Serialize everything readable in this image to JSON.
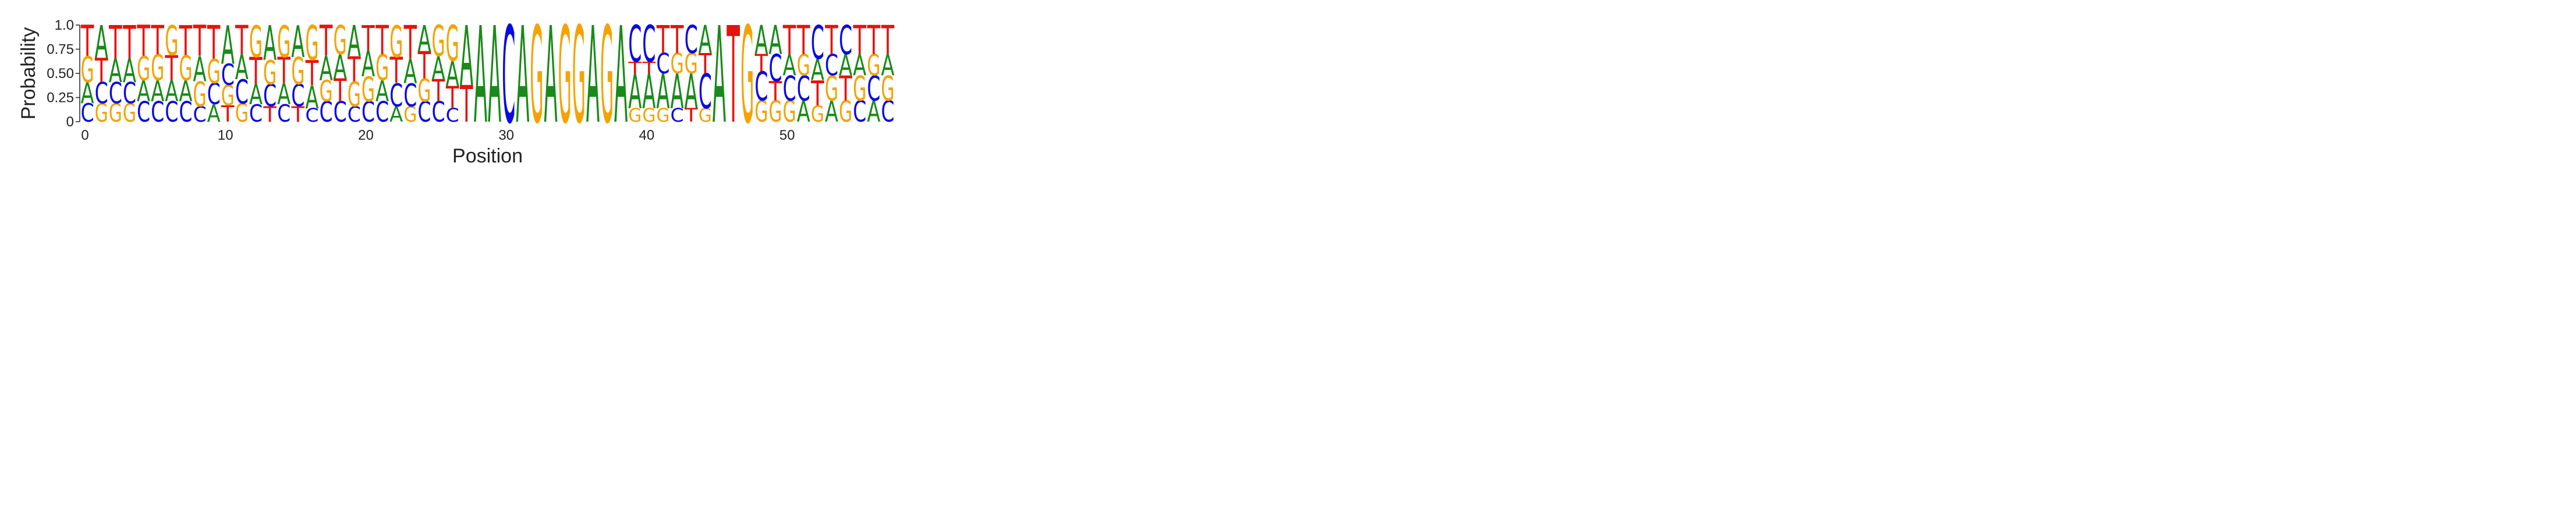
{
  "chart_data": {
    "type": "sequence-logo",
    "xlabel": "Position",
    "ylabel": "Probability",
    "ylim": [
      0,
      1
    ],
    "xlim": [
      0,
      58
    ],
    "yticks": [
      0,
      0.25,
      0.5,
      0.75,
      1
    ],
    "ytick_labels": [
      "0",
      "0.25",
      "0.50",
      "0.75",
      "1.0"
    ],
    "xticks": [
      0,
      10,
      20,
      30,
      40,
      50
    ],
    "xtick_labels": [
      "0",
      "10",
      "20",
      "30",
      "40",
      "50"
    ],
    "grid": false,
    "colors": {
      "A": "#1a8a1a",
      "C": "#0a0ae6",
      "G": "#f5a300",
      "T": "#e8120c"
    },
    "positions": [
      {
        "pos": 0,
        "C": 0.19,
        "A": 0.22,
        "G": 0.27,
        "T": 0.32
      },
      {
        "pos": 1,
        "G": 0.19,
        "C": 0.22,
        "T": 0.25,
        "A": 0.34
      },
      {
        "pos": 2,
        "G": 0.19,
        "C": 0.22,
        "A": 0.25,
        "T": 0.34
      },
      {
        "pos": 3,
        "G": 0.19,
        "C": 0.22,
        "A": 0.25,
        "T": 0.34
      },
      {
        "pos": 4,
        "C": 0.21,
        "A": 0.22,
        "G": 0.25,
        "T": 0.32
      },
      {
        "pos": 5,
        "C": 0.21,
        "A": 0.22,
        "G": 0.27,
        "T": 0.3
      },
      {
        "pos": 6,
        "C": 0.21,
        "A": 0.22,
        "T": 0.26,
        "G": 0.31
      },
      {
        "pos": 7,
        "C": 0.21,
        "A": 0.22,
        "G": 0.26,
        "T": 0.31
      },
      {
        "pos": 8,
        "C": 0.16,
        "G": 0.26,
        "A": 0.26,
        "T": 0.32
      },
      {
        "pos": 9,
        "A": 0.18,
        "C": 0.22,
        "G": 0.25,
        "T": 0.35
      },
      {
        "pos": 10,
        "T": 0.17,
        "G": 0.21,
        "C": 0.22,
        "A": 0.4
      },
      {
        "pos": 11,
        "G": 0.19,
        "C": 0.25,
        "A": 0.26,
        "T": 0.3
      },
      {
        "pos": 12,
        "C": 0.18,
        "A": 0.21,
        "T": 0.28,
        "G": 0.33
      },
      {
        "pos": 13,
        "T": 0.16,
        "C": 0.23,
        "G": 0.25,
        "A": 0.36
      },
      {
        "pos": 14,
        "C": 0.18,
        "A": 0.22,
        "T": 0.27,
        "G": 0.33
      },
      {
        "pos": 15,
        "T": 0.16,
        "C": 0.23,
        "G": 0.28,
        "A": 0.33
      },
      {
        "pos": 16,
        "C": 0.14,
        "A": 0.24,
        "T": 0.26,
        "G": 0.36
      },
      {
        "pos": 17,
        "C": 0.21,
        "G": 0.22,
        "A": 0.25,
        "T": 0.32
      },
      {
        "pos": 18,
        "C": 0.21,
        "T": 0.24,
        "A": 0.25,
        "G": 0.3
      },
      {
        "pos": 19,
        "C": 0.16,
        "G": 0.26,
        "T": 0.26,
        "A": 0.32
      },
      {
        "pos": 20,
        "C": 0.21,
        "G": 0.26,
        "A": 0.27,
        "T": 0.26
      },
      {
        "pos": 21,
        "C": 0.21,
        "A": 0.22,
        "G": 0.27,
        "T": 0.3
      },
      {
        "pos": 22,
        "A": 0.16,
        "C": 0.24,
        "T": 0.27,
        "G": 0.33
      },
      {
        "pos": 23,
        "G": 0.16,
        "C": 0.24,
        "A": 0.25,
        "T": 0.35
      },
      {
        "pos": 24,
        "C": 0.21,
        "G": 0.24,
        "T": 0.28,
        "A": 0.27
      },
      {
        "pos": 25,
        "C": 0.21,
        "T": 0.23,
        "A": 0.24,
        "G": 0.32
      },
      {
        "pos": 26,
        "C": 0.14,
        "T": 0.23,
        "A": 0.26,
        "G": 0.37
      },
      {
        "pos": 27,
        "T": 0.38,
        "A": 0.62
      },
      {
        "pos": 28,
        "A": 1.0
      },
      {
        "pos": 29,
        "A": 1.0
      },
      {
        "pos": 30,
        "C": 1.0
      },
      {
        "pos": 31,
        "A": 1.0
      },
      {
        "pos": 32,
        "G": 1.0
      },
      {
        "pos": 33,
        "A": 1.0
      },
      {
        "pos": 34,
        "G": 1.0
      },
      {
        "pos": 35,
        "G": 1.0
      },
      {
        "pos": 36,
        "A": 1.0
      },
      {
        "pos": 37,
        "G": 1.0
      },
      {
        "pos": 38,
        "A": 1.0
      },
      {
        "pos": 39,
        "G": 0.14,
        "A": 0.36,
        "T": 0.12,
        "C": 0.38
      },
      {
        "pos": 40,
        "G": 0.14,
        "A": 0.36,
        "T": 0.12,
        "C": 0.38
      },
      {
        "pos": 41,
        "G": 0.14,
        "A": 0.36,
        "C": 0.21,
        "T": 0.29
      },
      {
        "pos": 42,
        "C": 0.14,
        "A": 0.36,
        "G": 0.21,
        "T": 0.29
      },
      {
        "pos": 43,
        "T": 0.14,
        "A": 0.36,
        "G": 0.21,
        "C": 0.29
      },
      {
        "pos": 44,
        "G": 0.14,
        "C": 0.36,
        "T": 0.21,
        "A": 0.29
      },
      {
        "pos": 45,
        "A": 1.0
      },
      {
        "pos": 46,
        "T": 1.0
      },
      {
        "pos": 47,
        "G": 1.0
      },
      {
        "pos": 48,
        "G": 0.22,
        "C": 0.3,
        "T": 0.18,
        "A": 0.3
      },
      {
        "pos": 49,
        "G": 0.22,
        "T": 0.2,
        "C": 0.28,
        "A": 0.3
      },
      {
        "pos": 50,
        "G": 0.22,
        "C": 0.26,
        "A": 0.22,
        "T": 0.3
      },
      {
        "pos": 51,
        "A": 0.22,
        "C": 0.26,
        "G": 0.22,
        "T": 0.3
      },
      {
        "pos": 52,
        "G": 0.17,
        "T": 0.26,
        "A": 0.22,
        "C": 0.35
      },
      {
        "pos": 53,
        "A": 0.22,
        "G": 0.26,
        "C": 0.22,
        "T": 0.3
      },
      {
        "pos": 54,
        "G": 0.22,
        "T": 0.26,
        "A": 0.22,
        "C": 0.3
      },
      {
        "pos": 55,
        "C": 0.22,
        "G": 0.26,
        "A": 0.22,
        "T": 0.3
      },
      {
        "pos": 56,
        "A": 0.22,
        "C": 0.26,
        "G": 0.22,
        "T": 0.3
      },
      {
        "pos": 57,
        "C": 0.22,
        "G": 0.26,
        "A": 0.22,
        "T": 0.3
      }
    ]
  }
}
